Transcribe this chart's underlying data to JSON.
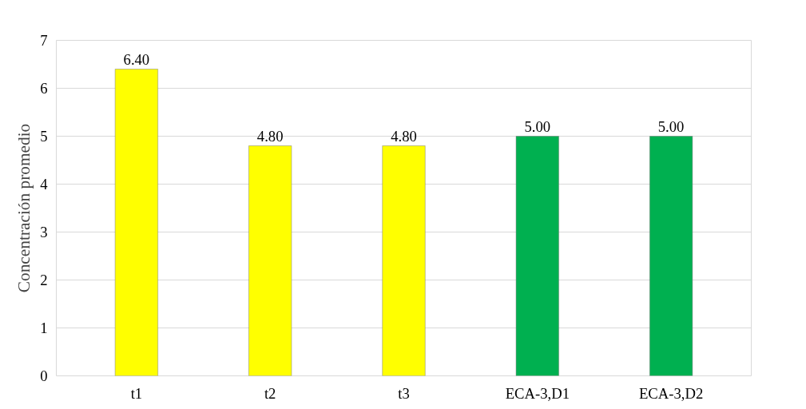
{
  "chart_data": {
    "type": "bar",
    "ylabel": "Concentración promedio",
    "categories": [
      "t1",
      "t2",
      "t3",
      "ECA-3,D1",
      "ECA-3,D2"
    ],
    "values": [
      6.4,
      4.8,
      4.8,
      5.0,
      5.0
    ],
    "colors": [
      "#ffff00",
      "#ffff00",
      "#ffff00",
      "#00b050",
      "#00b050"
    ],
    "value_labels": [
      "6.40",
      "4.80",
      "4.80",
      "5.00",
      "5.00"
    ],
    "ylim": [
      0,
      7
    ],
    "yticks": [
      0,
      1,
      2,
      3,
      4,
      5,
      6,
      7
    ],
    "grid": "y"
  }
}
